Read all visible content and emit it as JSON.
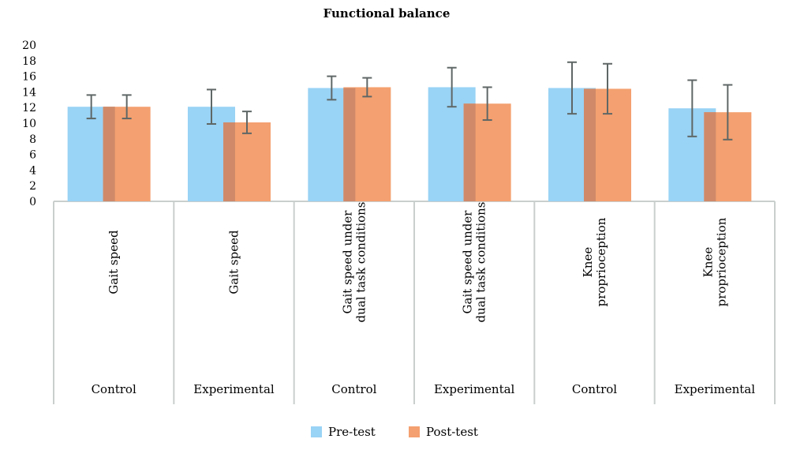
{
  "chart_data": {
    "type": "bar",
    "title": "Functional balance",
    "categories": [
      {
        "label_lines": [
          "Gait speed"
        ],
        "group": "Control"
      },
      {
        "label_lines": [
          "Gait speed"
        ],
        "group": "Experimental"
      },
      {
        "label_lines": [
          "Gait speed under",
          "dual task conditions"
        ],
        "group": "Control"
      },
      {
        "label_lines": [
          "Gait speed under",
          "dual task conditions"
        ],
        "group": "Experimental"
      },
      {
        "label_lines": [
          "Knee",
          "proprioception"
        ],
        "group": "Control"
      },
      {
        "label_lines": [
          "Knee",
          "proprioception"
        ],
        "group": "Experimental"
      }
    ],
    "series": [
      {
        "name": "Pre-test",
        "color": "#99d3f5",
        "values": [
          12.1,
          12.1,
          14.5,
          14.6,
          14.5,
          11.9
        ],
        "errors": [
          1.5,
          2.2,
          1.5,
          2.5,
          3.3,
          3.6
        ]
      },
      {
        "name": "Post-test",
        "color": "#f4a070",
        "values": [
          12.1,
          10.1,
          14.6,
          12.5,
          14.4,
          11.4
        ],
        "errors": [
          1.5,
          1.4,
          1.2,
          2.1,
          3.2,
          3.5
        ]
      }
    ],
    "ylim": [
      0,
      20
    ],
    "yticks": [
      0,
      2,
      4,
      6,
      8,
      10,
      12,
      14,
      16,
      18,
      20
    ],
    "grid": false,
    "legend_position": "bottom",
    "overlap_color": "#d08a69",
    "errorbar_color": "#5f6766",
    "axis_color": "#c9cfcd"
  }
}
